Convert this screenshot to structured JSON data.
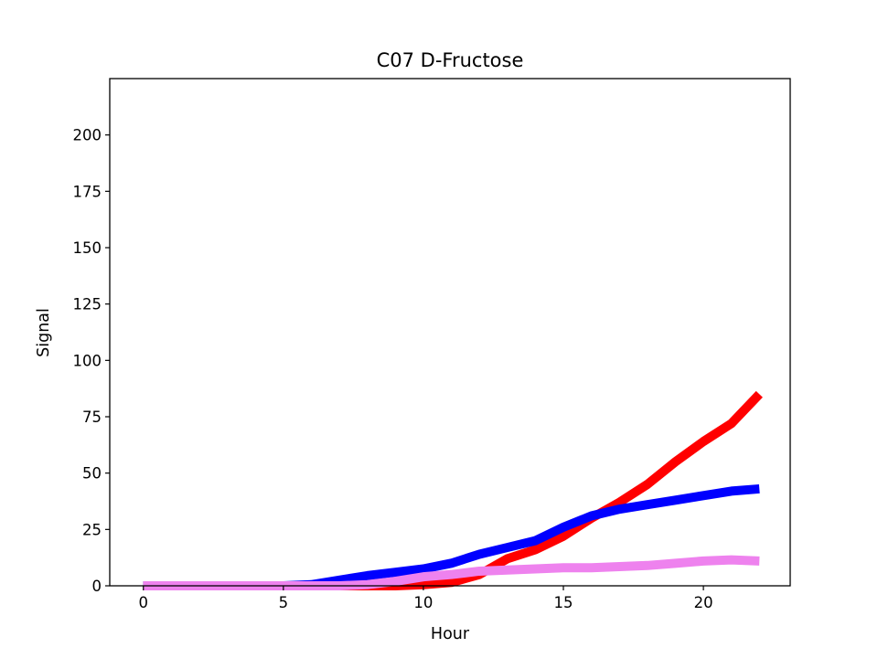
{
  "chart_data": {
    "type": "line",
    "title": "C07 D-Fructose",
    "xlabel": "Hour",
    "ylabel": "Signal",
    "xlim": [
      -1.2,
      23.1
    ],
    "ylim": [
      0,
      225
    ],
    "xticks": [
      0,
      5,
      10,
      15,
      20
    ],
    "yticks": [
      0,
      25,
      50,
      75,
      100,
      125,
      150,
      175,
      200
    ],
    "grid": false,
    "legend": "none",
    "x": [
      0,
      1,
      2,
      3,
      4,
      5,
      6,
      7,
      8,
      9,
      10,
      11,
      12,
      13,
      14,
      15,
      16,
      17,
      18,
      19,
      20,
      21,
      22
    ],
    "series": [
      {
        "color": "#ff0000",
        "values": [
          0,
          0,
          0,
          0,
          0,
          0,
          0,
          0,
          0,
          0,
          0.5,
          1.5,
          5,
          12,
          16,
          22,
          30,
          37,
          45,
          55,
          64,
          72,
          85
        ]
      },
      {
        "color": "#0000ff",
        "values": [
          0,
          0,
          0,
          0,
          0,
          0,
          0.5,
          2.5,
          4.5,
          6,
          7.5,
          10,
          14,
          17,
          20,
          26,
          31,
          34,
          36,
          38,
          40,
          42,
          43
        ]
      },
      {
        "color": "#ee82ee",
        "values": [
          0,
          0,
          0,
          0,
          0,
          0,
          0,
          0,
          0.5,
          2,
          4,
          5,
          6.5,
          7,
          7.5,
          8,
          8,
          8.5,
          9,
          10,
          11,
          11.5,
          11
        ]
      }
    ]
  }
}
